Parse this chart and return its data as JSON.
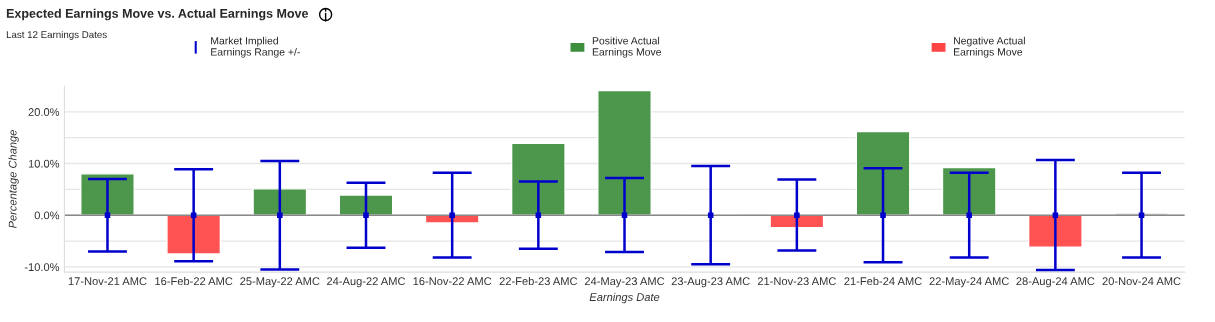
{
  "chart_data": {
    "type": "bar",
    "title": "Expected Earnings Move vs. Actual Earnings Move",
    "subtitle": "Last 12 Earnings Dates",
    "xlabel": "Earnings Date",
    "ylabel": "Percentage Change",
    "categories": [
      "17-Nov-21 AMC",
      "16-Feb-22 AMC",
      "25-May-22 AMC",
      "24-Aug-22 AMC",
      "16-Nov-22 AMC",
      "22-Feb-23 AMC",
      "24-May-23 AMC",
      "23-Aug-23 AMC",
      "21-Nov-23 AMC",
      "21-Feb-24 AMC",
      "22-May-24 AMC",
      "28-Aug-24 AMC",
      "20-Nov-24 AMC"
    ],
    "series": [
      {
        "name": "Market Implied\nEarnings Range +/-",
        "type": "scatter",
        "marker": "square",
        "color": "#0000cc",
        "values": [
          0,
          0,
          0,
          0,
          0,
          0,
          0,
          0,
          0,
          0,
          0,
          0,
          0
        ],
        "errors": [
          [
            -7.0,
            7.0
          ],
          [
            -8.9,
            8.9
          ],
          [
            -10.5,
            10.5
          ],
          [
            -6.3,
            6.3
          ],
          [
            -8.2,
            8.2
          ],
          [
            -6.5,
            6.5
          ],
          [
            -7.1,
            7.2
          ],
          [
            -9.5,
            9.5
          ],
          [
            -6.8,
            6.9
          ],
          [
            -9.1,
            9.1
          ],
          [
            -8.2,
            8.2
          ],
          [
            -10.6,
            10.7
          ],
          [
            -8.2,
            8.2
          ]
        ]
      },
      {
        "name": "Positive Actual\nEarnings Move",
        "color": "#3d8f3d",
        "values": [
          8.0,
          null,
          5.1,
          3.9,
          null,
          13.9,
          24.1,
          0.1,
          null,
          16.2,
          9.2,
          null,
          0.4
        ],
        "colors": [
          "#3d8f3d",
          null,
          "#3d8f3d",
          "#3d8f3d",
          null,
          "#3d8f3d",
          "#3d8f3d",
          "#3d8f3d",
          null,
          "#3d8f3d",
          "#3d8f3d",
          null,
          "#999999"
        ]
      },
      {
        "name": "Negative Actual\nEarnings Move",
        "color": "#ff4444",
        "values": [
          null,
          -7.5,
          null,
          null,
          -1.5,
          null,
          null,
          null,
          -2.4,
          null,
          null,
          -6.2,
          null
        ]
      }
    ],
    "ylim": [
      -11,
      25
    ],
    "yticks": [
      {
        "value": -10,
        "label": "-10.0%"
      },
      {
        "value": -5,
        "label": null
      },
      {
        "value": 0,
        "label": "0.0%"
      },
      {
        "value": 5,
        "label": null
      },
      {
        "value": 10,
        "label": "10.0%"
      },
      {
        "value": 15,
        "label": null
      },
      {
        "value": 20,
        "label": "20.0%"
      }
    ],
    "ref_lines": [
      {
        "axis": "y",
        "value": 0,
        "color": "#888888"
      }
    ],
    "grid": "y",
    "legend": "top"
  }
}
